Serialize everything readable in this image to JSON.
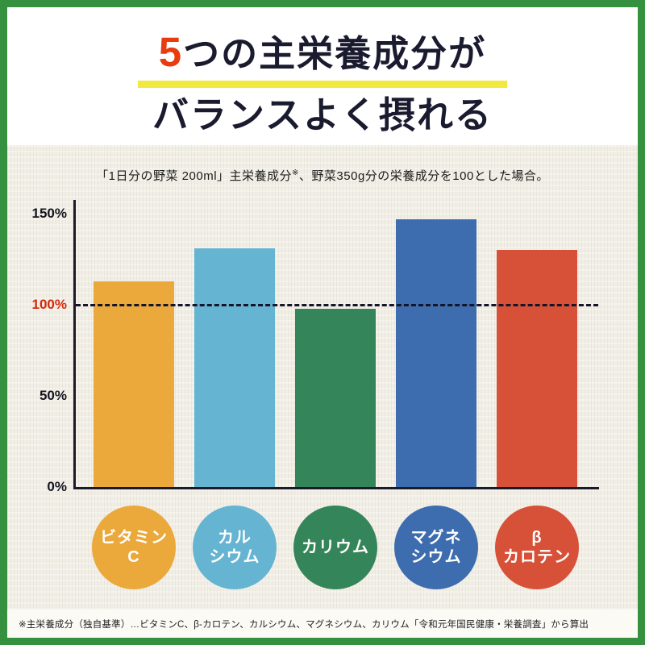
{
  "title": {
    "accent": "5",
    "line1_rest": "つの主栄養成分が",
    "line2": "バランスよく摂れる"
  },
  "chart_data": {
    "type": "bar",
    "title": "5つの主栄養成分がバランスよく摂れる",
    "subtitle": {
      "part1": "「1日分の野菜 200ml」主栄養成分",
      "sup": "※",
      "part2": "、野菜350g分の栄養成分を100とした場合。"
    },
    "categories": [
      "ビタミンC",
      "カルシウム",
      "カリウム",
      "マグネシウム",
      "βカロテン"
    ],
    "values": [
      113,
      131,
      98,
      147,
      130
    ],
    "unit": "%",
    "bar_colors": [
      "#eba93c",
      "#65b4d2",
      "#35855a",
      "#3d6dae",
      "#d75138"
    ],
    "label_lines": [
      [
        "ビタミン",
        "C"
      ],
      [
        "カル",
        "シウム"
      ],
      [
        "カリウム"
      ],
      [
        "マグネ",
        "シウム"
      ],
      [
        "β",
        "カロテン"
      ]
    ],
    "y_ticks": [
      {
        "label": "150%",
        "value": 150
      },
      {
        "label": "100%",
        "value": 100
      },
      {
        "label": "50%",
        "value": 50
      },
      {
        "label": "0%",
        "value": 0
      }
    ],
    "ylim": [
      0,
      160
    ],
    "reference_line": 100,
    "grid": false,
    "legend": "none"
  },
  "footnote": "※主栄養成分（独自基準）…ビタミンC、β-カロテン、カルシウム、マグネシウム、カリウム「令和元年国民健康・栄養調査」から算出",
  "colors": {
    "frame_green": "#35913f",
    "accent_red": "#e93c0e",
    "text_dark": "#1b1b30",
    "underline_yellow": "#f2e93e",
    "paper_bg": "#f1eee5",
    "axis_dark": "#1a1a28",
    "tick_red": "#d42b0c"
  }
}
